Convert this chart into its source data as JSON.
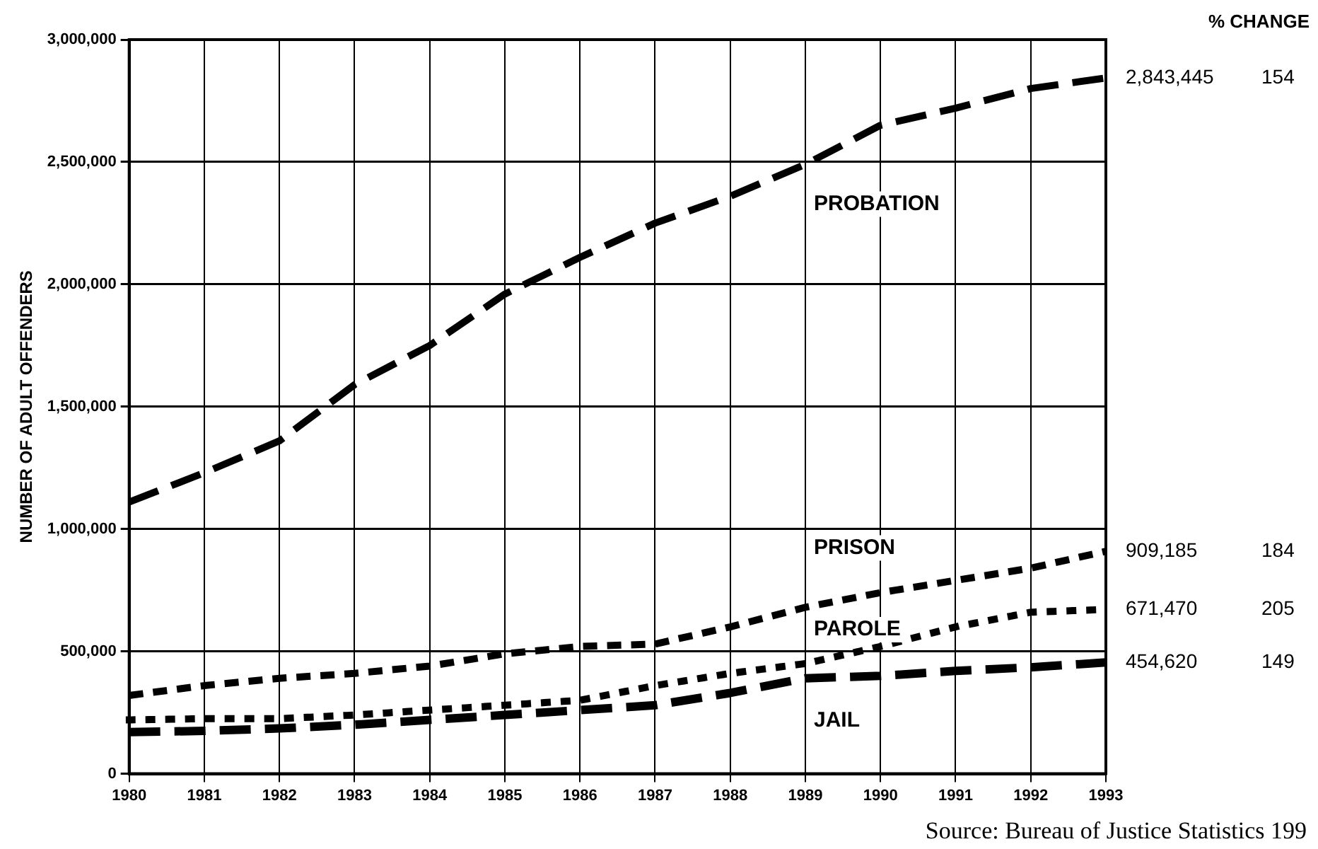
{
  "chart_data": {
    "type": "line",
    "ylabel": "NUMBER OF ADULT OFFENDERS",
    "categories": [
      "1980",
      "1981",
      "1982",
      "1983",
      "1984",
      "1985",
      "1986",
      "1987",
      "1988",
      "1989",
      "1990",
      "1991",
      "1992",
      "1993"
    ],
    "ylim": [
      0,
      3000000
    ],
    "yticks": [
      0,
      {
        "value": 500000,
        "label": "500,000"
      },
      {
        "value": 1000000,
        "label": "1,000,000"
      },
      {
        "value": 1500000,
        "label": "1,500,000"
      },
      {
        "value": 2000000,
        "label": "2,000,000"
      },
      {
        "value": 2500000,
        "label": "2,500,000"
      },
      {
        "value": 3000000,
        "label": "3,000,000"
      }
    ],
    "grid": true,
    "legend": false,
    "marker": "none",
    "series": [
      {
        "name": "PROBATION",
        "color": "#000000",
        "line_style": "dashed",
        "values": [
          1110000,
          1230000,
          1360000,
          1590000,
          1750000,
          1960000,
          2110000,
          2250000,
          2360000,
          2490000,
          2650000,
          2720000,
          2800000,
          2843445
        ],
        "value_labels": [
          null,
          null,
          null,
          null,
          null,
          null,
          null,
          null,
          null,
          null,
          null,
          null,
          null,
          "2,843,445"
        ]
      },
      {
        "name": "PRISON",
        "color": "#000000",
        "line_style": "dashed",
        "values": [
          320000,
          360000,
          390000,
          410000,
          440000,
          490000,
          520000,
          530000,
          600000,
          680000,
          740000,
          790000,
          840000,
          909185
        ],
        "value_labels": [
          null,
          null,
          null,
          null,
          null,
          null,
          null,
          null,
          null,
          null,
          null,
          null,
          null,
          "909,185"
        ]
      },
      {
        "name": "PAROLE",
        "color": "#000000",
        "line_style": "dotted",
        "values": [
          220000,
          225000,
          225000,
          240000,
          260000,
          280000,
          300000,
          360000,
          410000,
          450000,
          520000,
          600000,
          660000,
          671470
        ],
        "value_labels": [
          null,
          null,
          null,
          null,
          null,
          null,
          null,
          null,
          null,
          null,
          null,
          null,
          null,
          "671,470"
        ]
      },
      {
        "name": "JAIL",
        "color": "#000000",
        "line_style": "dashed",
        "values": [
          170000,
          175000,
          185000,
          200000,
          220000,
          240000,
          260000,
          280000,
          330000,
          390000,
          400000,
          420000,
          435000,
          454620
        ],
        "value_labels": [
          null,
          null,
          null,
          null,
          null,
          null,
          null,
          null,
          null,
          null,
          null,
          null,
          null,
          "454,620"
        ]
      }
    ],
    "annotations": [
      "% CHANGE",
      "154",
      "184",
      "205",
      "149",
      "Source: Bureau of Justice Statistics 199"
    ]
  }
}
